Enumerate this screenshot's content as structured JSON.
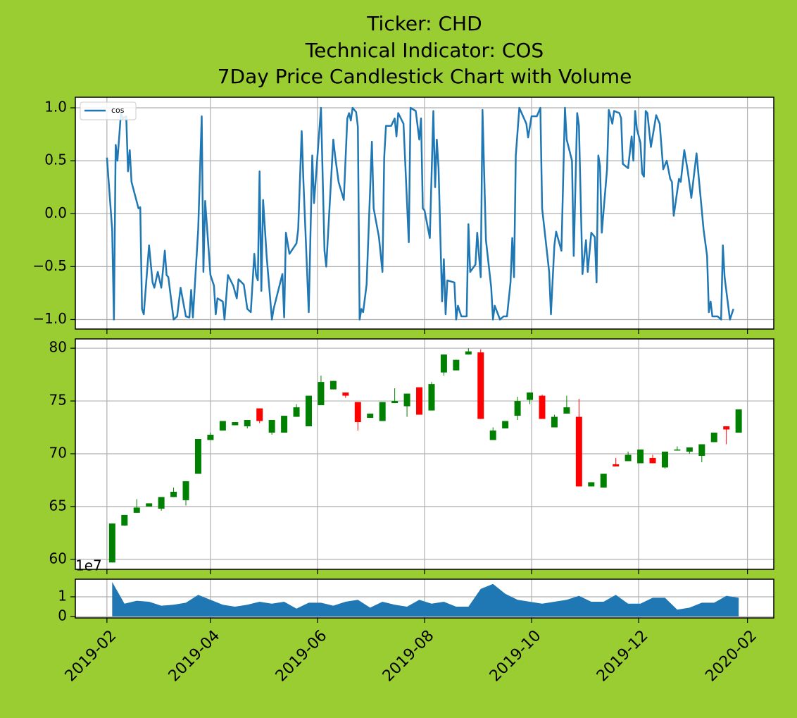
{
  "chart_data": [
    {
      "type": "line",
      "title": [
        "Ticker: CHD",
        "Technical Indicator: COS",
        "7Day Price Candlestick Chart with Volume"
      ],
      "x": [
        17928,
        17931,
        17932,
        17933,
        17934,
        17936,
        17937,
        17939,
        17940,
        17941,
        17942,
        17946,
        17947,
        17948,
        17949,
        17952,
        17954,
        17955,
        17957,
        17959,
        17961,
        17962,
        17963,
        17966,
        17968,
        17970,
        17973,
        17975,
        17976,
        17977,
        17980,
        17982,
        17983,
        17984,
        17987,
        17989,
        17990,
        17991,
        17994,
        17995,
        17997,
        18000,
        18002,
        18003,
        18006,
        18008,
        18010,
        18012,
        18013,
        18014,
        18015,
        18016,
        18017,
        18019,
        18022,
        18023,
        18028,
        18029,
        18030,
        18032,
        18036,
        18037,
        18039,
        18040,
        18043,
        18045,
        18046,
        18050,
        18052,
        18053,
        18057,
        18058,
        18060,
        18063,
        18065,
        18066,
        18067,
        18068,
        18070,
        18071,
        18072,
        18073,
        18074,
        18076,
        18079,
        18080,
        18083,
        18085,
        18086,
        18087,
        18090,
        18092,
        18093,
        18094,
        18097,
        18100,
        18101,
        18104,
        18106,
        18107,
        18108,
        18109,
        18112,
        18114,
        18115,
        18116,
        18117,
        18119,
        18120,
        18121,
        18122,
        18126,
        18127,
        18128,
        18130,
        18133,
        18134,
        18135,
        18138,
        18139,
        18141,
        18142,
        18144,
        18147,
        18148,
        18149,
        18152,
        18154,
        18156,
        18158,
        18159,
        18160,
        18161,
        18163,
        18167,
        18168,
        18170,
        18173,
        18175,
        18176,
        18180,
        18181,
        18183,
        18184,
        18187,
        18189,
        18190,
        18193,
        18194,
        18196,
        18197,
        18199,
        18201,
        18202,
        18204,
        18206,
        18207,
        18208,
        18209,
        18210,
        18213,
        18214,
        18216,
        18217,
        18220,
        18221,
        18222,
        18225,
        18227,
        18228,
        18229,
        18230,
        18232,
        18233,
        18234,
        18235,
        18236,
        18238,
        18241,
        18243,
        18245,
        18247,
        18249,
        18250,
        18251,
        18254,
        18255,
        18257,
        18259,
        18261,
        18264,
        18268,
        18270,
        18271,
        18272,
        18273,
        18276,
        18278,
        18279,
        18280,
        18283,
        18285
      ],
      "series": [
        {
          "name": "cos",
          "color": "#1f77b4",
          "values": [
            0.53,
            -0.15,
            -1.0,
            0.65,
            0.5,
            0.95,
            0.9,
            0.92,
            0.4,
            0.6,
            0.3,
            0.05,
            0.06,
            -0.9,
            -0.95,
            -0.3,
            -0.65,
            -0.7,
            -0.55,
            -0.7,
            -0.35,
            -0.58,
            -0.6,
            -1.0,
            -0.97,
            -0.7,
            -0.97,
            -0.98,
            -0.72,
            -0.98,
            -0.15,
            0.92,
            -0.55,
            0.12,
            -0.58,
            -0.68,
            -0.95,
            -0.8,
            -0.83,
            -1.0,
            -0.58,
            -0.68,
            -0.8,
            -0.62,
            -0.67,
            -0.9,
            -0.93,
            -0.38,
            -0.58,
            -0.63,
            0.4,
            -0.73,
            0.13,
            -0.4,
            -1.0,
            -0.9,
            -0.57,
            -0.98,
            -0.18,
            -0.38,
            -0.28,
            -0.15,
            0.78,
            0.3,
            -0.93,
            0.55,
            0.1,
            1.0,
            -0.35,
            -0.5,
            0.7,
            0.55,
            0.3,
            0.13,
            0.9,
            0.95,
            0.88,
            1.0,
            0.96,
            0.82,
            -1.0,
            -0.9,
            -0.93,
            -0.67,
            0.68,
            0.05,
            -0.22,
            -0.55,
            0.53,
            0.83,
            0.83,
            0.9,
            0.73,
            0.95,
            0.85,
            -0.27,
            1.0,
            0.97,
            0.7,
            0.9,
            0.05,
            0.03,
            -0.23,
            0.97,
            0.25,
            0.7,
            0.43,
            -0.83,
            -0.43,
            -0.95,
            -0.63,
            -0.65,
            -1.0,
            -0.87,
            -0.97,
            -0.97,
            -0.1,
            -0.55,
            -0.48,
            -0.18,
            -0.6,
            0.98,
            -0.25,
            -0.7,
            -1.0,
            -0.87,
            -1.0,
            -0.97,
            -0.97,
            -0.65,
            -0.23,
            -0.6,
            0.55,
            1.0,
            0.85,
            0.72,
            0.92,
            0.92,
            1.0,
            0.05,
            -0.55,
            -0.95,
            -0.3,
            -0.17,
            -0.35,
            1.0,
            0.7,
            0.5,
            -0.4,
            0.95,
            0.83,
            -0.57,
            -0.25,
            -0.55,
            -0.18,
            -0.22,
            -0.65,
            0.55,
            0.45,
            -0.18,
            0.42,
            0.98,
            0.85,
            0.97,
            0.95,
            0.9,
            0.47,
            0.43,
            0.73,
            0.5,
            0.97,
            0.8,
            0.67,
            0.38,
            0.35,
            0.97,
            0.95,
            0.63,
            0.93,
            0.85,
            0.42,
            0.5,
            0.33,
            0.3,
            -0.02,
            0.33,
            0.3,
            0.6,
            0.4,
            0.15,
            0.57,
            -0.15,
            -0.4,
            -0.93,
            -0.83,
            -0.97,
            -0.97,
            -1.0,
            -0.3,
            -0.6,
            -1.0,
            -0.9
          ]
        }
      ],
      "ylim": [
        -1.09,
        1.1
      ],
      "yticks": [
        {
          "value": -1.0,
          "label": "−1.0"
        },
        {
          "value": -0.5,
          "label": "−0.5"
        },
        {
          "value": 0.0,
          "label": "0.0"
        },
        {
          "value": 0.5,
          "label": "0.5"
        },
        {
          "value": 1.0,
          "label": "1.0"
        }
      ],
      "legend": "upper left",
      "grid": true
    },
    {
      "type": "candlestick",
      "x": [
        17931,
        17938,
        17945,
        17952,
        17959,
        17966,
        17973,
        17980,
        17987,
        17994,
        18001,
        18008,
        18015,
        18022,
        18029,
        18036,
        18043,
        18050,
        18057,
        18064,
        18071,
        18078,
        18085,
        18092,
        18099,
        18106,
        18113,
        18120,
        18127,
        18134,
        18141,
        18148,
        18155,
        18162,
        18169,
        18176,
        18183,
        18190,
        18197,
        18204,
        18211,
        18218,
        18225,
        18232,
        18239,
        18246,
        18253,
        18260,
        18267,
        18274,
        18281,
        18288
      ],
      "open": [
        59.7,
        63.2,
        64.4,
        65.0,
        64.8,
        65.9,
        65.6,
        68.1,
        71.3,
        72.2,
        72.7,
        72.6,
        74.3,
        72.0,
        72.0,
        73.5,
        72.6,
        74.6,
        76.1,
        75.8,
        74.9,
        73.4,
        73.1,
        74.8,
        74.5,
        76.3,
        74.1,
        77.7,
        77.9,
        79.4,
        79.6,
        71.3,
        72.4,
        73.6,
        75.1,
        75.5,
        72.5,
        73.8,
        73.5,
        66.9,
        66.8,
        69.0,
        69.3,
        69.1,
        69.6,
        68.7,
        70.3,
        70.2,
        69.8,
        71.1,
        72.6,
        72.0
      ],
      "high": [
        63.4,
        64.2,
        65.7,
        65.3,
        65.9,
        66.8,
        67.4,
        71.4,
        72.0,
        73.1,
        73.0,
        73.2,
        74.3,
        73.2,
        73.6,
        74.7,
        75.5,
        77.4,
        76.9,
        75.8,
        74.9,
        73.8,
        74.9,
        76.2,
        75.7,
        76.3,
        76.8,
        79.4,
        78.9,
        80.0,
        79.9,
        72.5,
        73.1,
        75.4,
        75.8,
        75.6,
        73.7,
        75.5,
        75.2,
        67.3,
        68.1,
        69.6,
        70.2,
        70.4,
        69.9,
        70.2,
        70.7,
        70.6,
        70.9,
        72.0,
        72.6,
        74.2
      ],
      "low": [
        59.7,
        63.2,
        64.4,
        65.0,
        64.6,
        65.9,
        65.1,
        68.1,
        71.3,
        72.2,
        72.7,
        72.4,
        72.9,
        71.8,
        72.0,
        73.5,
        72.6,
        74.6,
        76.1,
        75.3,
        72.2,
        73.4,
        73.1,
        74.8,
        73.5,
        73.7,
        74.1,
        77.4,
        77.9,
        79.4,
        73.3,
        71.3,
        72.4,
        73.2,
        74.7,
        73.3,
        72.5,
        73.8,
        66.9,
        66.9,
        66.8,
        68.8,
        69.3,
        69.1,
        69.1,
        68.6,
        70.3,
        70.0,
        69.2,
        71.1,
        70.9,
        72.0
      ],
      "close": [
        63.4,
        64.2,
        64.9,
        65.3,
        65.9,
        66.4,
        67.4,
        71.4,
        71.8,
        73.1,
        73.0,
        73.2,
        73.1,
        73.2,
        73.6,
        74.4,
        75.5,
        76.8,
        76.9,
        75.5,
        73.0,
        73.8,
        74.9,
        75.0,
        75.7,
        73.7,
        76.6,
        79.4,
        78.9,
        79.7,
        73.3,
        72.2,
        73.1,
        75.0,
        75.8,
        73.3,
        73.5,
        74.4,
        66.9,
        67.3,
        68.1,
        68.8,
        69.9,
        70.4,
        69.1,
        70.2,
        70.4,
        70.6,
        70.9,
        72.0,
        72.3,
        74.2
      ],
      "up_color": "green",
      "down_color": "red",
      "ylim": [
        59.05,
        80.88
      ],
      "yticks": [
        60,
        65,
        70,
        75,
        80
      ],
      "grid": true
    },
    {
      "type": "area",
      "x": [
        17931,
        17938,
        17945,
        17952,
        17959,
        17966,
        17973,
        17980,
        17987,
        17994,
        18001,
        18008,
        18015,
        18022,
        18029,
        18036,
        18043,
        18050,
        18057,
        18064,
        18071,
        18078,
        18085,
        18092,
        18099,
        18106,
        18113,
        18120,
        18127,
        18134,
        18141,
        18148,
        18155,
        18162,
        18169,
        18176,
        18183,
        18190,
        18197,
        18204,
        18211,
        18218,
        18225,
        18232,
        18239,
        18246,
        18253,
        18260,
        18267,
        18274,
        18281,
        18288
      ],
      "values": [
        1.75,
        0.65,
        0.8,
        0.75,
        0.55,
        0.6,
        0.7,
        1.1,
        0.85,
        0.6,
        0.5,
        0.6,
        0.75,
        0.65,
        0.75,
        0.4,
        0.7,
        0.7,
        0.55,
        0.75,
        0.85,
        0.45,
        0.75,
        0.6,
        0.5,
        0.85,
        0.65,
        0.75,
        0.5,
        0.5,
        1.4,
        1.65,
        1.15,
        0.85,
        0.75,
        0.65,
        0.75,
        0.85,
        1.05,
        0.75,
        0.75,
        1.1,
        0.65,
        0.65,
        0.95,
        0.95,
        0.35,
        0.45,
        0.7,
        0.7,
        1.05,
        0.95
      ],
      "color": "#1f77b4",
      "offset_label": "1e7",
      "ylim": [
        -0.07,
        1.89
      ],
      "yticks": [
        0,
        1
      ],
      "grid": true,
      "xlim": [
        17910,
        18308
      ],
      "xticks": [
        {
          "value": 17928,
          "label": "2019-02"
        },
        {
          "value": 17987,
          "label": "2019-04"
        },
        {
          "value": 18048,
          "label": "2019-06"
        },
        {
          "value": 18109,
          "label": "2019-08"
        },
        {
          "value": 18170,
          "label": "2019-10"
        },
        {
          "value": 18231,
          "label": "2019-12"
        },
        {
          "value": 18293,
          "label": "2020-02"
        }
      ]
    }
  ]
}
